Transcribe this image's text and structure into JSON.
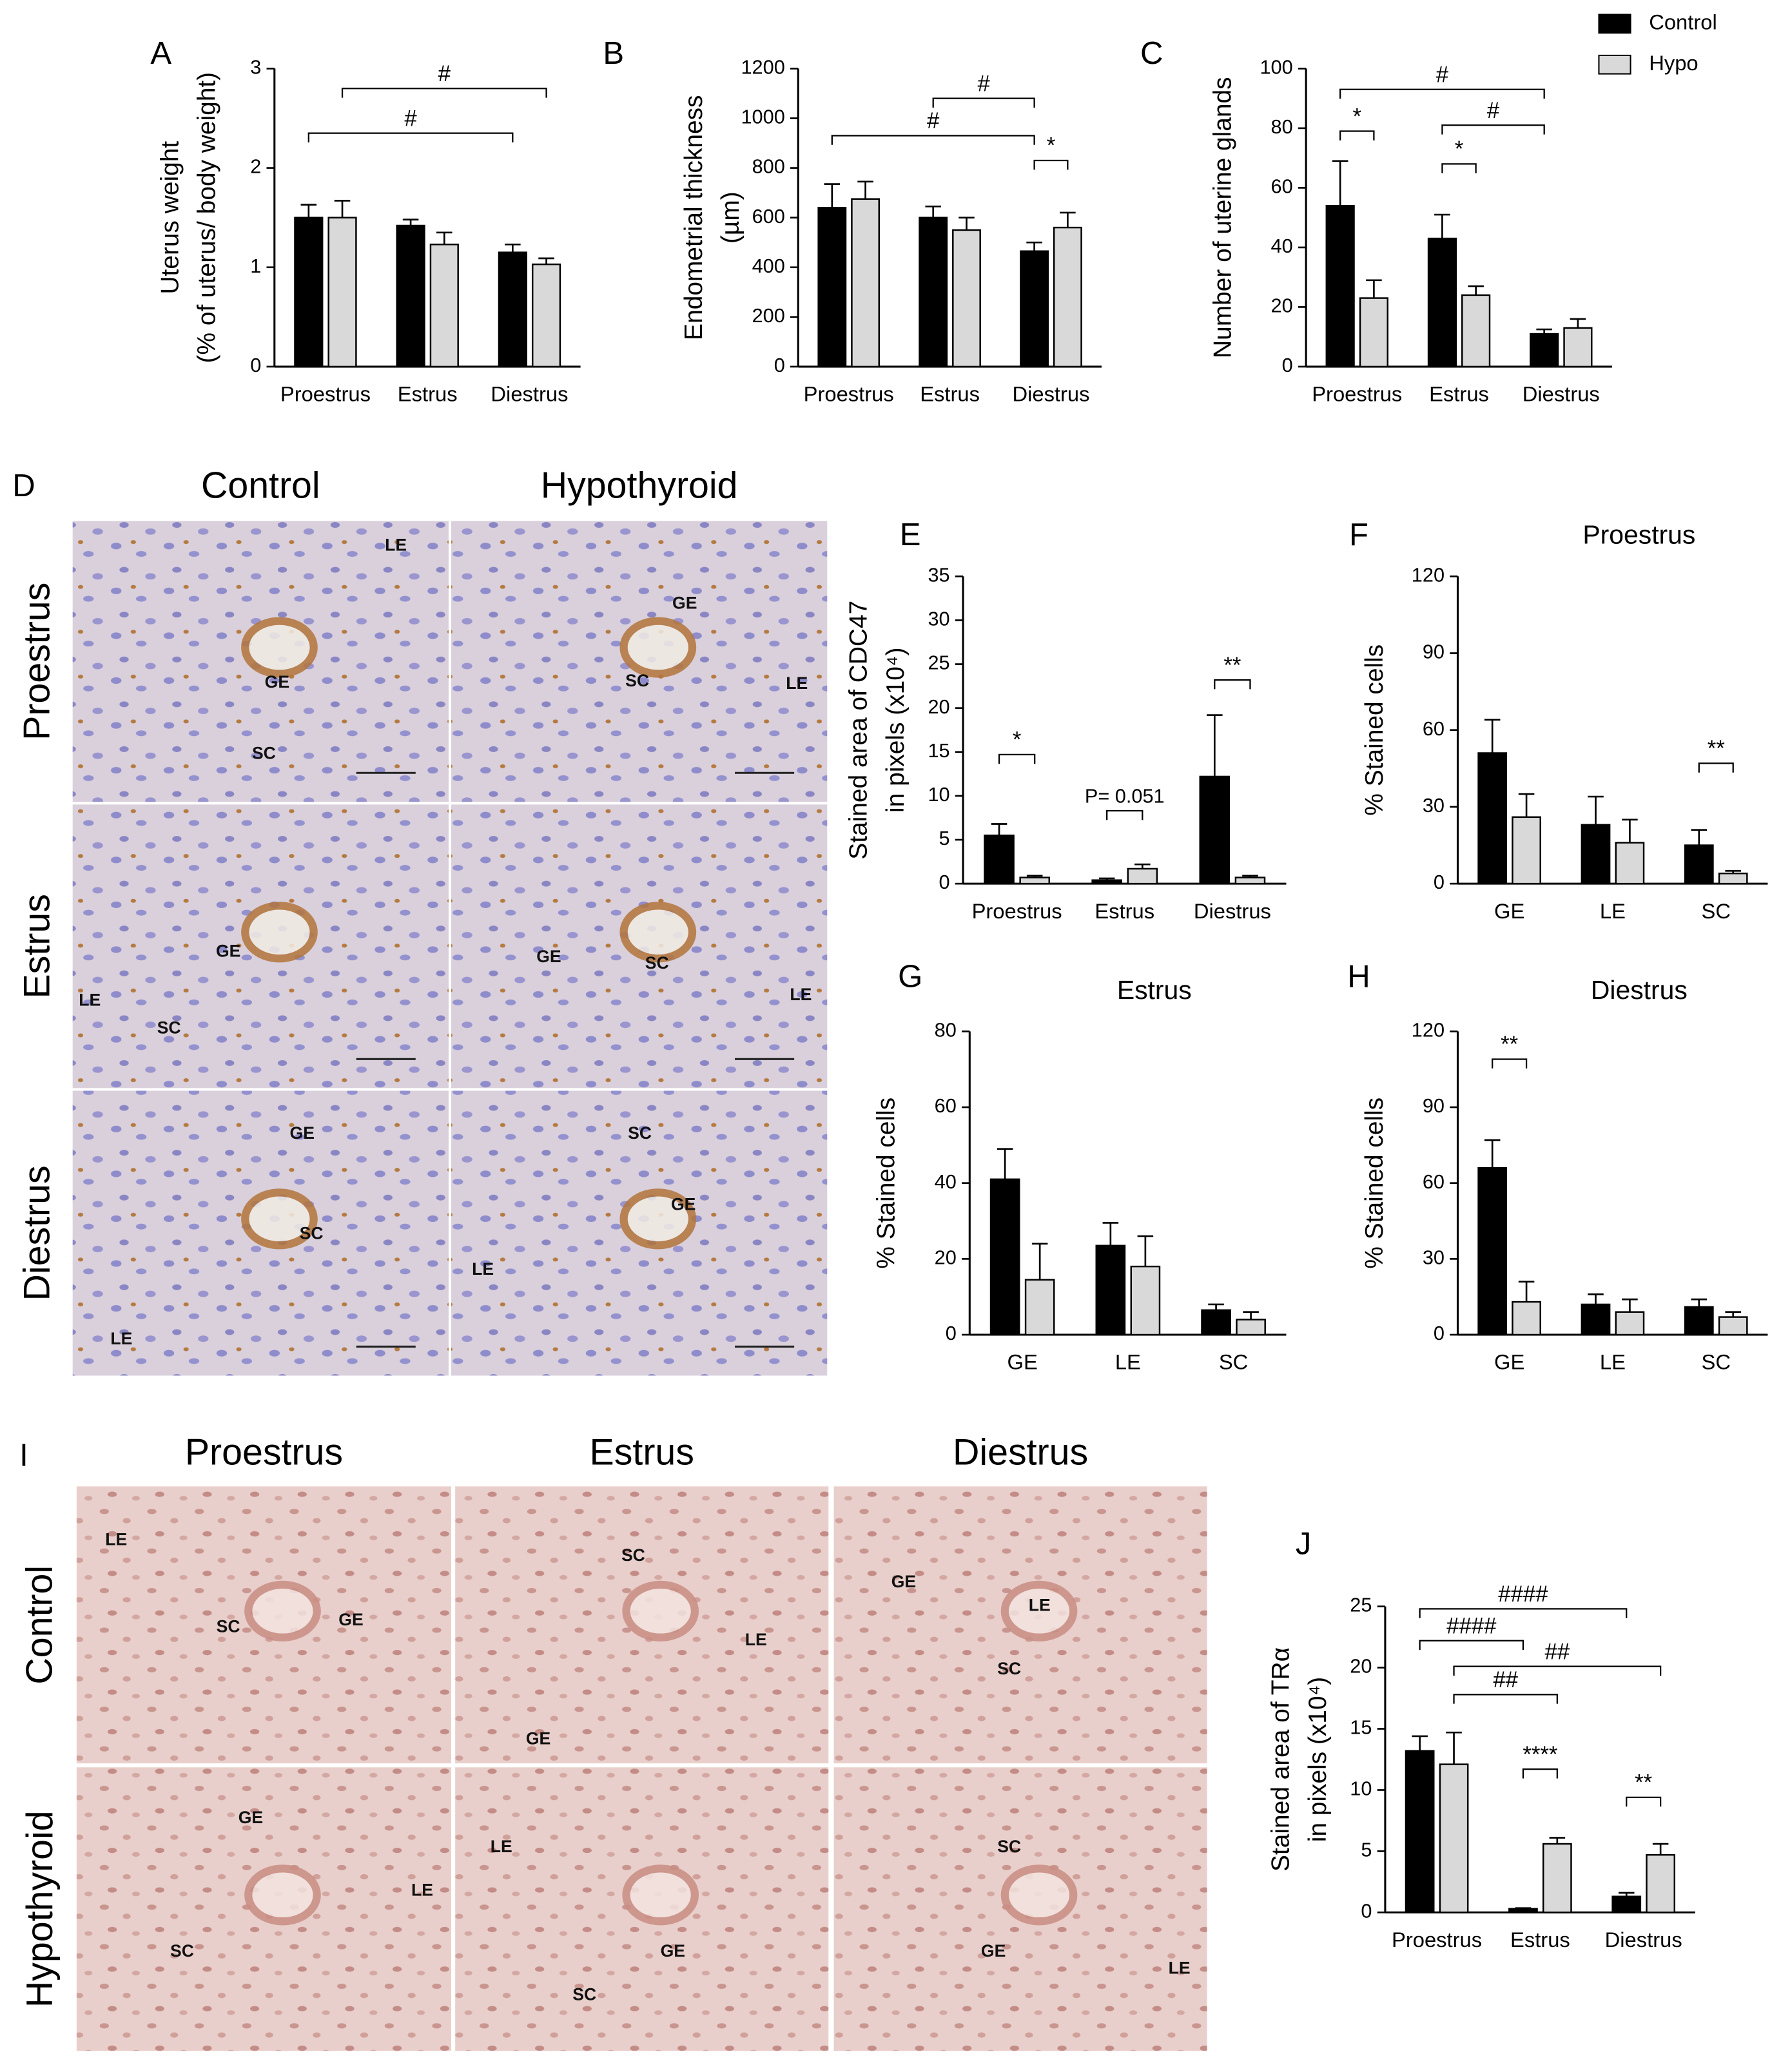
{
  "chart_data": [
    {
      "type": "bar",
      "panel": "A",
      "ylabel": [
        "Uterus weight",
        "(% of uterus/ body weight)"
      ],
      "categories": [
        "Proestrus",
        "Estrus",
        "Diestrus"
      ],
      "series": [
        {
          "name": "Control",
          "color": "#000000",
          "values": [
            1.5,
            1.42,
            1.15
          ],
          "errors": [
            0.13,
            0.06,
            0.08
          ]
        },
        {
          "name": "Hypo",
          "color": "#d9d9d9",
          "values": [
            1.5,
            1.23,
            1.03
          ],
          "errors": [
            0.17,
            0.12,
            0.06
          ]
        }
      ],
      "ylim": [
        0,
        3
      ],
      "yticks": [
        0,
        1,
        2,
        3
      ],
      "annotations": [
        {
          "text": "#",
          "y": 2.8,
          "from": [
            0,
            1
          ],
          "to": [
            2,
            1
          ]
        },
        {
          "text": "#",
          "y": 2.35,
          "from": [
            0,
            0
          ],
          "to": [
            2,
            0
          ]
        }
      ]
    },
    {
      "type": "bar",
      "panel": "B",
      "ylabel": [
        "Endometrial thickness",
        "(µm)"
      ],
      "categories": [
        "Proestrus",
        "Estrus",
        "Diestrus"
      ],
      "series": [
        {
          "name": "Control",
          "color": "#000000",
          "values": [
            640,
            600,
            465
          ],
          "errors": [
            95,
            45,
            35
          ]
        },
        {
          "name": "Hypo",
          "color": "#d9d9d9",
          "values": [
            675,
            550,
            560
          ],
          "errors": [
            70,
            50,
            60
          ]
        }
      ],
      "ylim": [
        0,
        1200
      ],
      "yticks": [
        0,
        200,
        400,
        600,
        800,
        1000,
        1200
      ],
      "annotations": [
        {
          "text": "#",
          "y": 1080,
          "from": [
            1,
            0
          ],
          "to": [
            2,
            0
          ]
        },
        {
          "text": "#",
          "y": 930,
          "from": [
            0,
            0
          ],
          "to": [
            2,
            0
          ]
        },
        {
          "text": "*",
          "y": 830,
          "from": [
            2,
            0
          ],
          "to": [
            2,
            1
          ]
        }
      ]
    },
    {
      "type": "bar",
      "panel": "C",
      "ylabel": [
        "Number of uterine glands"
      ],
      "categories": [
        "Proestrus",
        "Estrus",
        "Diestrus"
      ],
      "series": [
        {
          "name": "Control",
          "color": "#000000",
          "values": [
            54,
            43,
            11
          ],
          "errors": [
            15,
            8,
            1.5
          ]
        },
        {
          "name": "Hypo",
          "color": "#d9d9d9",
          "values": [
            23,
            24,
            13
          ],
          "errors": [
            6,
            3,
            3
          ]
        }
      ],
      "ylim": [
        0,
        100
      ],
      "yticks": [
        0,
        20,
        40,
        60,
        80,
        100
      ],
      "annotations": [
        {
          "text": "#",
          "y": 93,
          "from": [
            0,
            0
          ],
          "to": [
            2,
            0
          ]
        },
        {
          "text": "*",
          "y": 79,
          "from": [
            0,
            0
          ],
          "to": [
            0,
            1
          ]
        },
        {
          "text": "#",
          "y": 81,
          "from": [
            1,
            0
          ],
          "to": [
            2,
            0
          ]
        },
        {
          "text": "*",
          "y": 68,
          "from": [
            1,
            0
          ],
          "to": [
            1,
            1
          ]
        }
      ]
    },
    {
      "type": "bar",
      "panel": "E",
      "ylabel": [
        "Stained area of CDC47",
        "in pixels (x10⁴)"
      ],
      "categories": [
        "Proestrus",
        "Estrus",
        "Diestrus"
      ],
      "series": [
        {
          "name": "Control",
          "color": "#000000",
          "values": [
            5.5,
            0.4,
            12.2
          ],
          "errors": [
            1.3,
            0.2,
            7
          ]
        },
        {
          "name": "Hypo",
          "color": "#d9d9d9",
          "values": [
            0.7,
            1.7,
            0.7
          ],
          "errors": [
            0.2,
            0.5,
            0.2
          ]
        }
      ],
      "ylim": [
        0,
        35
      ],
      "yticks": [
        0,
        5,
        10,
        15,
        20,
        25,
        30,
        35
      ],
      "annotations": [
        {
          "text": "*",
          "y": 14.7,
          "from": [
            0,
            0
          ],
          "to": [
            0,
            1
          ]
        },
        {
          "text": "P= 0.051",
          "y": 8.3,
          "from": [
            1,
            0
          ],
          "to": [
            1,
            1
          ]
        },
        {
          "text": "**",
          "y": 23.2,
          "from": [
            2,
            0
          ],
          "to": [
            2,
            1
          ]
        }
      ]
    },
    {
      "type": "bar",
      "panel": "F",
      "title": "Proestrus",
      "ylabel": [
        "% Stained cells"
      ],
      "categories": [
        "GE",
        "LE",
        "SC"
      ],
      "series": [
        {
          "name": "Control",
          "color": "#000000",
          "values": [
            51,
            23,
            15
          ],
          "errors": [
            13,
            11,
            6
          ]
        },
        {
          "name": "Hypo",
          "color": "#d9d9d9",
          "values": [
            26,
            16,
            4
          ],
          "errors": [
            9,
            9,
            1
          ]
        }
      ],
      "ylim": [
        0,
        120
      ],
      "yticks": [
        0,
        30,
        60,
        90,
        120
      ],
      "annotations": [
        {
          "text": "**",
          "y": 47,
          "from": [
            2,
            0
          ],
          "to": [
            2,
            1
          ]
        }
      ]
    },
    {
      "type": "bar",
      "panel": "G",
      "title": "Estrus",
      "ylabel": [
        "% Stained cells"
      ],
      "categories": [
        "GE",
        "LE",
        "SC"
      ],
      "series": [
        {
          "name": "Control",
          "color": "#000000",
          "values": [
            41,
            23.5,
            6.5
          ],
          "errors": [
            8,
            6,
            1.5
          ]
        },
        {
          "name": "Hypo",
          "color": "#d9d9d9",
          "values": [
            14.5,
            18,
            4
          ],
          "errors": [
            9.5,
            8,
            2
          ]
        }
      ],
      "ylim": [
        0,
        80
      ],
      "yticks": [
        0,
        20,
        40,
        60,
        80
      ],
      "annotations": []
    },
    {
      "type": "bar",
      "panel": "H",
      "title": "Diestrus",
      "ylabel": [
        "% Stained cells"
      ],
      "categories": [
        "GE",
        "LE",
        "SC"
      ],
      "series": [
        {
          "name": "Control",
          "color": "#000000",
          "values": [
            66,
            12,
            11
          ],
          "errors": [
            11,
            4,
            3
          ]
        },
        {
          "name": "Hypo",
          "color": "#d9d9d9",
          "values": [
            13,
            9,
            7
          ],
          "errors": [
            8,
            5,
            2
          ]
        }
      ],
      "ylim": [
        0,
        120
      ],
      "yticks": [
        0,
        30,
        60,
        90,
        120
      ],
      "annotations": [
        {
          "text": "**",
          "y": 109,
          "from": [
            0,
            0
          ],
          "to": [
            0,
            1
          ]
        }
      ]
    },
    {
      "type": "bar",
      "panel": "J",
      "ylabel": [
        "Stained area of TRα",
        "in pixels (x10⁴)"
      ],
      "categories": [
        "Proestrus",
        "Estrus",
        "Diestrus"
      ],
      "series": [
        {
          "name": "Control",
          "color": "#000000",
          "values": [
            13.2,
            0.3,
            1.3
          ],
          "errors": [
            1.2,
            0.05,
            0.3
          ]
        },
        {
          "name": "Hypo",
          "color": "#d9d9d9",
          "values": [
            12.1,
            5.6,
            4.7
          ],
          "errors": [
            2.6,
            0.5,
            0.9
          ]
        }
      ],
      "ylim": [
        0,
        25
      ],
      "yticks": [
        0,
        5,
        10,
        15,
        20,
        25
      ],
      "annotations": [
        {
          "text": "####",
          "y": 24.8,
          "from": [
            0,
            0
          ],
          "to": [
            2,
            0
          ]
        },
        {
          "text": "####",
          "y": 22.2,
          "from": [
            0,
            0
          ],
          "to": [
            1,
            0
          ]
        },
        {
          "text": "##",
          "y": 20.1,
          "from": [
            0,
            1
          ],
          "to": [
            2,
            1
          ]
        },
        {
          "text": "##",
          "y": 17.8,
          "from": [
            0,
            1
          ],
          "to": [
            1,
            1
          ]
        },
        {
          "text": "****",
          "y": 11.7,
          "from": [
            1,
            0
          ],
          "to": [
            1,
            1
          ]
        },
        {
          "text": "**",
          "y": 9.4,
          "from": [
            2,
            0
          ],
          "to": [
            2,
            1
          ]
        }
      ]
    }
  ],
  "micrographs": [
    {
      "panel": "D",
      "columns": [
        "Control",
        "Hypothyroid"
      ],
      "rows": [
        "Proestrus",
        "Estrus",
        "Diestrus"
      ],
      "labels": [
        [
          [
            "LE",
            "GE",
            "SC"
          ],
          [
            "GE",
            "SC",
            "LE"
          ]
        ],
        [
          [
            "GE",
            "LE",
            "SC"
          ],
          [
            "GE",
            "SC",
            "LE"
          ]
        ],
        [
          [
            "GE",
            "SC",
            "LE"
          ],
          [
            "SC",
            "GE",
            "LE"
          ]
        ]
      ]
    },
    {
      "panel": "I",
      "columns": [
        "Proestrus",
        "Estrus",
        "Diestrus"
      ],
      "rows": [
        "Control",
        "Hypothyroid"
      ],
      "labels": [
        [
          [
            "LE",
            "SC",
            "GE"
          ],
          [
            "SC",
            "LE",
            "GE"
          ],
          [
            "GE",
            "LE",
            "SC"
          ]
        ],
        [
          [
            "GE",
            "LE",
            "SC"
          ],
          [
            "LE",
            "GE",
            "SC"
          ],
          [
            "SC",
            "GE",
            "LE"
          ]
        ]
      ]
    }
  ]
}
